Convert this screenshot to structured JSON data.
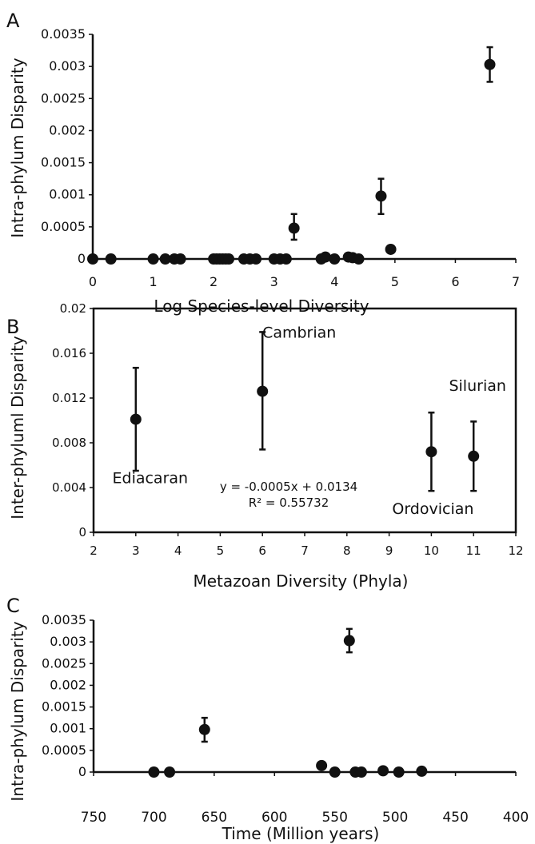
{
  "chart_data": [
    {
      "panel": "A",
      "type": "scatter",
      "title": "",
      "xlabel": "Log Species-level Diversity",
      "ylabel": "Intra-phylum Disparity",
      "xlim": [
        0,
        7
      ],
      "ylim": [
        0,
        0.0035
      ],
      "xticks": [
        0,
        1,
        2,
        3,
        4,
        5,
        6,
        7
      ],
      "xtick_labels": [
        "0",
        "1",
        "2",
        "3",
        "4",
        "5",
        "6",
        "7"
      ],
      "yticks": [
        0,
        0.0005,
        0.001,
        0.0015,
        0.002,
        0.0025,
        0.003,
        0.0035
      ],
      "ytick_labels": [
        "0",
        "0.0005",
        "0.001",
        "0.0015",
        "0.002",
        "0.0025",
        "0.003",
        "0.0035"
      ],
      "grid": false,
      "points": [
        {
          "x": 0,
          "y": 0
        },
        {
          "x": 0.3,
          "y": 0
        },
        {
          "x": 1.0,
          "y": 0
        },
        {
          "x": 1.2,
          "y": 0
        },
        {
          "x": 1.35,
          "y": 0
        },
        {
          "x": 1.45,
          "y": 0
        },
        {
          "x": 2.0,
          "y": 0
        },
        {
          "x": 2.05,
          "y": 0
        },
        {
          "x": 2.1,
          "y": 0
        },
        {
          "x": 2.15,
          "y": 0
        },
        {
          "x": 2.2,
          "y": 0
        },
        {
          "x": 2.25,
          "y": 0
        },
        {
          "x": 2.5,
          "y": 0
        },
        {
          "x": 2.6,
          "y": 0
        },
        {
          "x": 2.7,
          "y": 0
        },
        {
          "x": 3.0,
          "y": 0
        },
        {
          "x": 3.1,
          "y": 0
        },
        {
          "x": 3.2,
          "y": 0
        },
        {
          "x": 3.33,
          "y": 0.00048,
          "err": [
            0.0003,
            0.0007
          ]
        },
        {
          "x": 3.78,
          "y": 0
        },
        {
          "x": 3.85,
          "y": 3e-05
        },
        {
          "x": 4.0,
          "y": 0
        },
        {
          "x": 4.23,
          "y": 3e-05
        },
        {
          "x": 4.3,
          "y": 2e-05
        },
        {
          "x": 4.4,
          "y": 0
        },
        {
          "x": 4.77,
          "y": 0.00098,
          "err": [
            0.0007,
            0.00125
          ]
        },
        {
          "x": 4.93,
          "y": 0.00015
        },
        {
          "x": 6.57,
          "y": 0.00303,
          "err": [
            0.00276,
            0.0033
          ]
        }
      ]
    },
    {
      "panel": "B",
      "type": "scatter",
      "title": "",
      "xlabel": "Metazoan Diversity (Phyla)",
      "ylabel": "Inter-phyluml Disparity",
      "xlim": [
        2,
        12
      ],
      "ylim": [
        0,
        0.02
      ],
      "xticks": [
        2,
        3,
        4,
        5,
        6,
        7,
        8,
        9,
        10,
        11,
        12
      ],
      "xtick_labels": [
        "2",
        "3",
        "4",
        "5",
        "6",
        "7",
        "8",
        "9",
        "10",
        "11",
        "12"
      ],
      "yticks": [
        0,
        0.004,
        0.008,
        0.012,
        0.016,
        0.02
      ],
      "ytick_labels": [
        "0",
        "0.004",
        "0.008",
        "0.012",
        "0.016",
        "0.02"
      ],
      "grid": false,
      "points": [
        {
          "x": 3,
          "y": 0.0101,
          "err": [
            0.0055,
            0.0147
          ],
          "label": "Ediacaran"
        },
        {
          "x": 6,
          "y": 0.0126,
          "err": [
            0.0074,
            0.0179
          ],
          "label": "Cambrian"
        },
        {
          "x": 10,
          "y": 0.0072,
          "err": [
            0.0037,
            0.0107
          ],
          "label": "Ordovician"
        },
        {
          "x": 11,
          "y": 0.0068,
          "err": [
            0.0037,
            0.0099
          ],
          "label": "Silurian"
        }
      ],
      "annotation": {
        "equation": "y = -0.0005x + 0.0134",
        "r2": "R² = 0.55732"
      }
    },
    {
      "panel": "C",
      "type": "scatter",
      "title": "",
      "xlabel": "Time (Million years)",
      "ylabel": "Intra-phylum Disparity",
      "xlim": [
        750,
        400
      ],
      "ylim": [
        0,
        0.0035
      ],
      "xticks": [
        750,
        700,
        650,
        600,
        550,
        500,
        450,
        400
      ],
      "xtick_labels": [
        "750",
        "700",
        "650",
        "600",
        "550",
        "500",
        "450",
        "400"
      ],
      "yticks": [
        0,
        0.0005,
        0.001,
        0.0015,
        0.002,
        0.0025,
        0.003,
        0.0035
      ],
      "ytick_labels": [
        "0",
        "0.0005",
        "0.001",
        "0.0015",
        "0.002",
        "0.0025",
        "0.003",
        "0.0035"
      ],
      "grid": false,
      "points": [
        {
          "x": 700,
          "y": 0
        },
        {
          "x": 687,
          "y": 0
        },
        {
          "x": 658,
          "y": 0.00098,
          "err": [
            0.0007,
            0.00125
          ]
        },
        {
          "x": 561,
          "y": 0.00015
        },
        {
          "x": 538,
          "y": 0.00303,
          "err": [
            0.00276,
            0.0033
          ]
        },
        {
          "x": 550,
          "y": 0
        },
        {
          "x": 533,
          "y": 0
        },
        {
          "x": 528,
          "y": 0
        },
        {
          "x": 510,
          "y": 3e-05
        },
        {
          "x": 497,
          "y": 0
        },
        {
          "x": 478,
          "y": 2e-05
        }
      ]
    }
  ]
}
